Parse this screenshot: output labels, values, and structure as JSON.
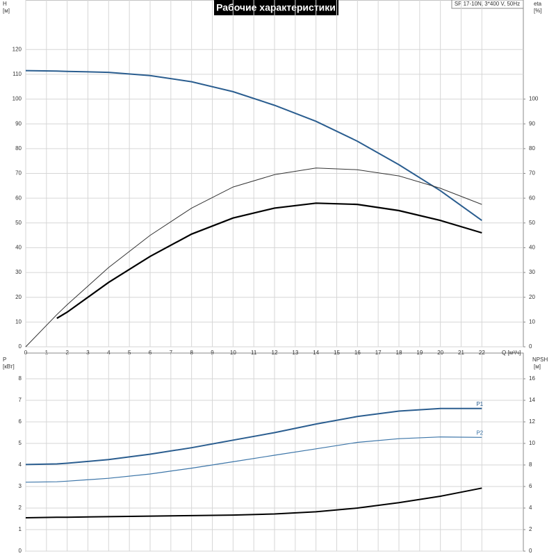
{
  "chart_data": [
    {
      "type": "line",
      "title": "Рабочие характеристики",
      "subtitle": "SP 17-10N, 3*400 V, 50Hz",
      "ylabel": "H",
      "ylabel_unit": "[м]",
      "y2label": "eta",
      "y2label_unit": "[%]",
      "xlabel": "Q [м³/ч]",
      "x": [
        0,
        1.5,
        2,
        4,
        6,
        8,
        10,
        12,
        14,
        16,
        18,
        20,
        22
      ],
      "xlim": [
        0,
        24
      ],
      "xticks": [
        0,
        1,
        2,
        3,
        4,
        5,
        6,
        7,
        8,
        9,
        10,
        11,
        12,
        13,
        14,
        15,
        16,
        17,
        18,
        19,
        20,
        21,
        22
      ],
      "ylim": [
        0,
        140
      ],
      "yticks": [
        0,
        10,
        20,
        30,
        40,
        50,
        60,
        70,
        80,
        90,
        100,
        110,
        120
      ],
      "y2lim": [
        0,
        140
      ],
      "y2ticks": [
        0,
        10,
        20,
        30,
        40,
        50,
        60,
        70,
        80,
        90,
        100
      ],
      "grid": true,
      "series": [
        {
          "color": "#2a5d8f",
          "width": 2,
          "values": [
            111.5,
            111.3,
            111.2,
            110.8,
            109.5,
            107,
            103,
            97.5,
            91,
            83,
            73.5,
            63,
            51
          ]
        },
        {
          "color": "#333333",
          "width": 1,
          "axis": "y2",
          "values": [
            0,
            13,
            17,
            32,
            45,
            56,
            64.5,
            69.5,
            72.2,
            71.5,
            69,
            64,
            57.5
          ]
        },
        {
          "color": "#000000",
          "width": 2.2,
          "axis": "y2",
          "values": [
            null,
            11.5,
            14,
            26,
            36.5,
            45.5,
            52,
            56,
            58,
            57.5,
            55,
            51,
            46
          ]
        }
      ]
    },
    {
      "type": "line",
      "ylabel": "P",
      "ylabel_unit": "[кВт]",
      "y2label": "NPSH",
      "y2label_unit": "[м]",
      "x": [
        0,
        1.5,
        2,
        4,
        6,
        8,
        10,
        12,
        14,
        16,
        18,
        20,
        22
      ],
      "xlim": [
        0,
        24
      ],
      "xticks": [
        0,
        1,
        2,
        3,
        4,
        5,
        6,
        7,
        8,
        9,
        10,
        11,
        12,
        13,
        14,
        15,
        16,
        17,
        18,
        19,
        20,
        21,
        22
      ],
      "ylim": [
        0,
        9
      ],
      "yticks": [
        0,
        1,
        2,
        3,
        4,
        5,
        6,
        7,
        8
      ],
      "y2lim": [
        0,
        18
      ],
      "y2ticks": [
        0,
        2,
        4,
        6,
        8,
        10,
        12,
        14,
        16
      ],
      "grid": true,
      "series": [
        {
          "name": "P1",
          "color": "#2a5d8f",
          "width": 2,
          "values": [
            4.02,
            4.05,
            4.08,
            4.25,
            4.5,
            4.8,
            5.15,
            5.5,
            5.9,
            6.25,
            6.5,
            6.62,
            6.62
          ]
        },
        {
          "name": "P2",
          "color": "#3c75a8",
          "width": 1.2,
          "values": [
            3.2,
            3.22,
            3.25,
            3.38,
            3.58,
            3.85,
            4.15,
            4.45,
            4.75,
            5.05,
            5.22,
            5.3,
            5.28
          ]
        },
        {
          "color": "#000000",
          "width": 2,
          "axis": "y2",
          "values": [
            3.1,
            3.15,
            3.15,
            3.2,
            3.25,
            3.3,
            3.35,
            3.45,
            3.65,
            4.0,
            4.5,
            5.1,
            5.85
          ]
        }
      ]
    }
  ]
}
